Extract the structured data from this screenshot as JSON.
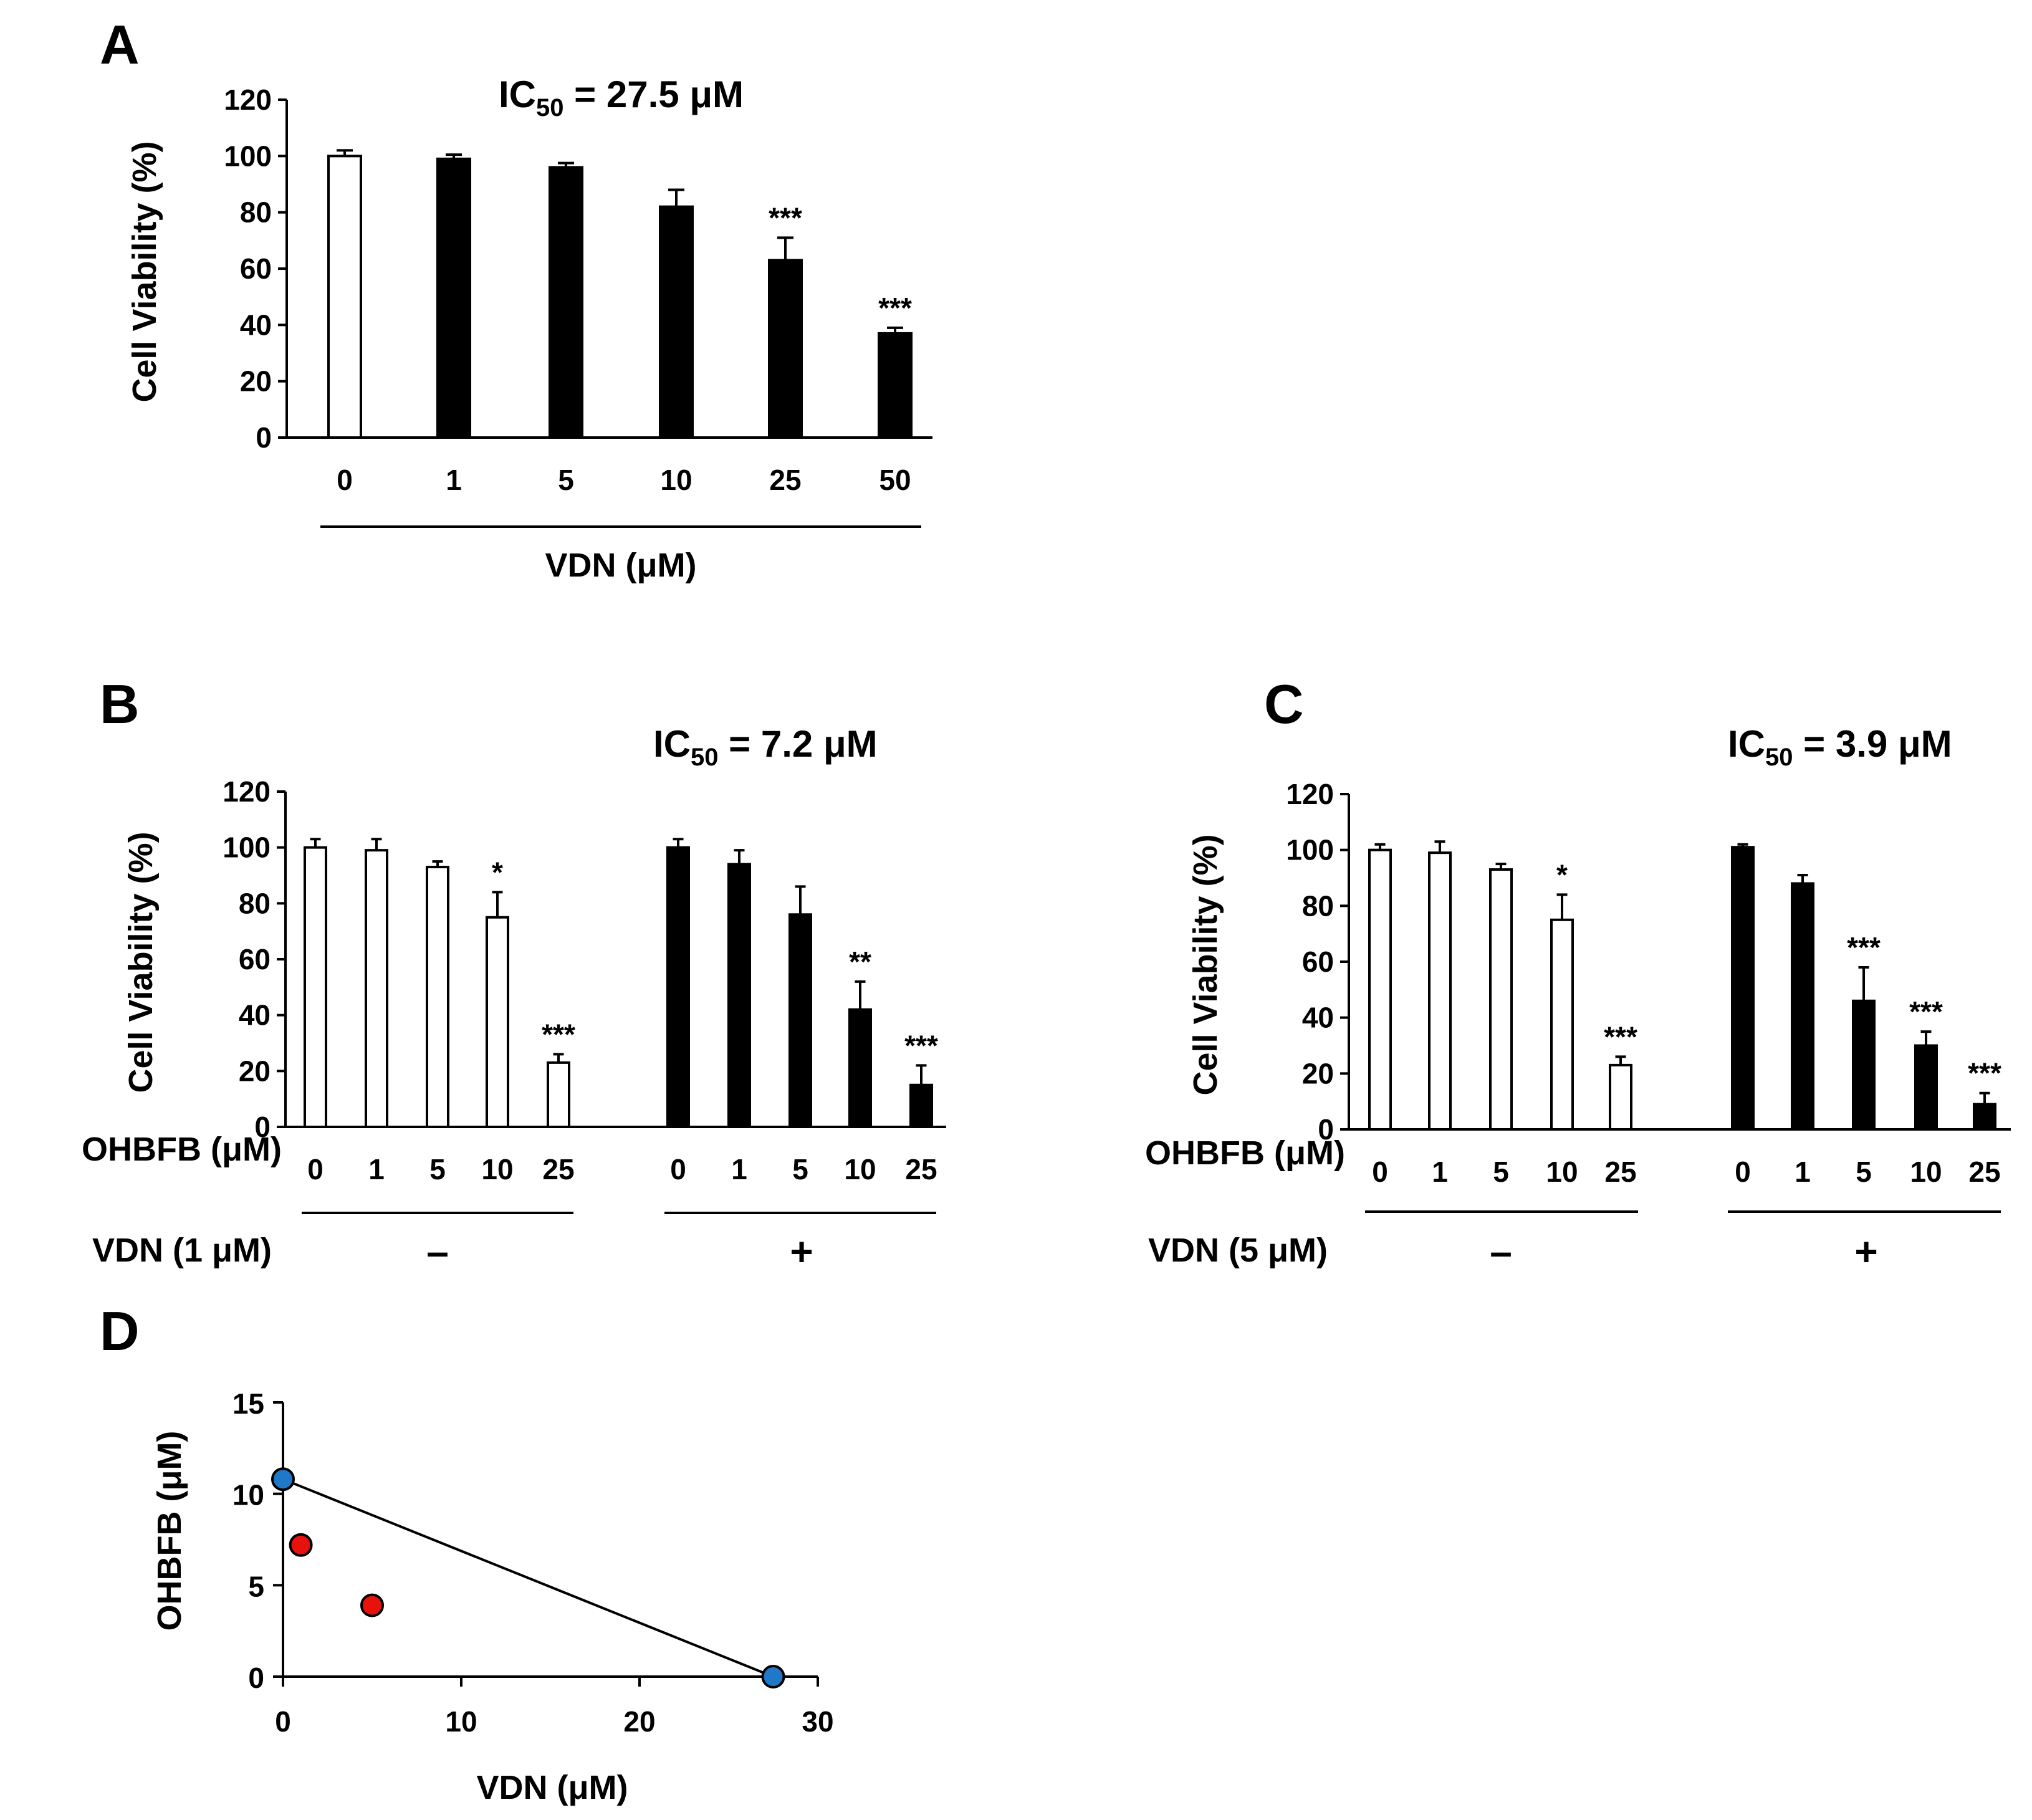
{
  "colors": {
    "white_bar": "#ffffff",
    "black_bar": "#000000",
    "isobole_endpoint": "#1f78c8",
    "combination_point": "#e8120c",
    "axis": "#000000"
  },
  "chart_data": [
    {
      "panel": "A",
      "type": "bar",
      "ic50_prefix": "IC",
      "ic50_sub": "50",
      "ic50_suffix": " = 27.5 μM",
      "ylabel": "Cell Viability (%)",
      "xlabel": "VDN (μM)",
      "ylim": [
        0,
        120
      ],
      "yticks": [
        "0",
        "20",
        "40",
        "60",
        "80",
        "100",
        "120"
      ],
      "categories": [
        "0",
        "1",
        "5",
        "10",
        "25",
        "50"
      ],
      "values": [
        100,
        99,
        96,
        82,
        63,
        37
      ],
      "errors": [
        2,
        1.5,
        1.5,
        6,
        8,
        2
      ],
      "fills": [
        "white",
        "black",
        "black",
        "black",
        "black",
        "black"
      ],
      "significance": [
        "",
        "",
        "",
        "",
        "***",
        "***"
      ]
    },
    {
      "panel": "B",
      "type": "bar",
      "ic50_prefix": "IC",
      "ic50_sub": "50",
      "ic50_suffix": " = 7.2 μM",
      "ylabel": "Cell Viability (%)",
      "ylim": [
        0,
        120
      ],
      "yticks": [
        "0",
        "20",
        "40",
        "60",
        "80",
        "100",
        "120"
      ],
      "row1_label": "OHBFB (μM)",
      "row2_label": "VDN (1 μM)",
      "groups": [
        {
          "sign": "–",
          "fill": "white",
          "categories": [
            "0",
            "1",
            "5",
            "10",
            "25"
          ],
          "values": [
            100,
            99,
            93,
            75,
            23
          ],
          "errors": [
            3,
            4,
            2,
            9,
            3
          ],
          "significance": [
            "",
            "",
            "",
            "*",
            "***"
          ]
        },
        {
          "sign": "+",
          "fill": "black",
          "categories": [
            "0",
            "1",
            "5",
            "10",
            "25"
          ],
          "values": [
            100,
            94,
            76,
            42,
            15
          ],
          "errors": [
            3,
            5,
            10,
            10,
            7
          ],
          "significance": [
            "",
            "",
            "",
            "**",
            "***"
          ]
        }
      ]
    },
    {
      "panel": "C",
      "type": "bar",
      "ic50_prefix": "IC",
      "ic50_sub": "50",
      "ic50_suffix": " = 3.9 μM",
      "ylabel": "Cell Viability (%)",
      "ylim": [
        0,
        120
      ],
      "yticks": [
        "0",
        "20",
        "40",
        "60",
        "80",
        "100",
        "120"
      ],
      "row1_label": "OHBFB (μM)",
      "row2_label": "VDN (5 μM)",
      "groups": [
        {
          "sign": "–",
          "fill": "white",
          "categories": [
            "0",
            "1",
            "5",
            "10",
            "25"
          ],
          "values": [
            100,
            99,
            93,
            75,
            23
          ],
          "errors": [
            2,
            4,
            2,
            9,
            3
          ],
          "significance": [
            "",
            "",
            "",
            "*",
            "***"
          ]
        },
        {
          "sign": "+",
          "fill": "black",
          "categories": [
            "0",
            "1",
            "5",
            "10",
            "25"
          ],
          "values": [
            101,
            88,
            46,
            30,
            9
          ],
          "errors": [
            1,
            3,
            12,
            5,
            4
          ],
          "significance": [
            "",
            "",
            "***",
            "***",
            "***"
          ]
        }
      ]
    },
    {
      "panel": "D",
      "type": "scatter",
      "xlabel": "VDN (μM)",
      "ylabel": "OHBFB (μM)",
      "xlim": [
        0,
        30
      ],
      "ylim": [
        0,
        15
      ],
      "xticks": [
        "0",
        "10",
        "20",
        "30"
      ],
      "yticks": [
        "0",
        "5",
        "10",
        "15"
      ],
      "isobole_line": [
        [
          0,
          10.8
        ],
        [
          27.5,
          0
        ]
      ],
      "points": [
        {
          "x": 0,
          "y": 10.8,
          "color": "blue"
        },
        {
          "x": 27.5,
          "y": 0,
          "color": "blue"
        },
        {
          "x": 1,
          "y": 7.2,
          "color": "red"
        },
        {
          "x": 5,
          "y": 3.9,
          "color": "red"
        }
      ]
    }
  ]
}
